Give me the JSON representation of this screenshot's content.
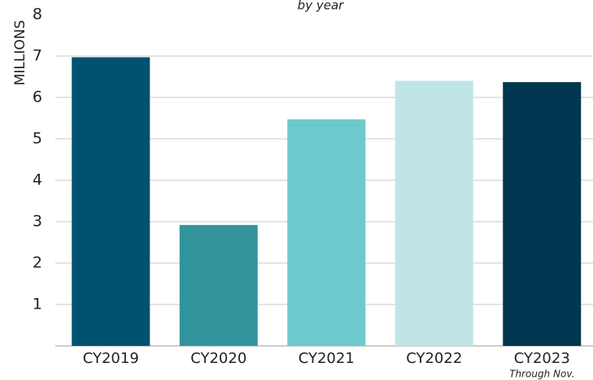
{
  "chart_data": {
    "type": "bar",
    "subtitle": "by year",
    "y_label": "MILLIONS",
    "categories": [
      "CY2019",
      "CY2020",
      "CY2021",
      "CY2022",
      "CY2023"
    ],
    "values": [
      6.97,
      2.92,
      5.47,
      6.4,
      6.37
    ],
    "colors": [
      "#005270",
      "#33949e",
      "#6ccacd",
      "#bfe5e6",
      "#00364f"
    ],
    "annotation": "Through Nov.",
    "ylim": [
      0,
      8
    ],
    "yticks": [
      1,
      2,
      3,
      4,
      5,
      6,
      7,
      8
    ],
    "grid": true
  }
}
